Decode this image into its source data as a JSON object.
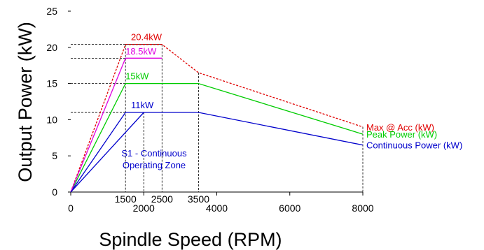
{
  "chart_data": {
    "type": "line",
    "xlabel": "Spindle Speed (RPM)",
    "ylabel": "Output Power (kW)",
    "xlim": [
      0,
      8000
    ],
    "ylim": [
      0,
      25
    ],
    "xticks": [
      "0",
      "2000",
      "4000",
      "6000",
      "8000"
    ],
    "xticks_secondary": [
      "1500",
      "2500",
      "3500"
    ],
    "yticks": [
      "0",
      "5",
      "10",
      "15",
      "20",
      "25"
    ],
    "series": [
      {
        "name": "Max @ Acc (kW)",
        "color": "#e00000",
        "style": "dashed",
        "x": [
          0,
          1500,
          2500,
          3500,
          8000
        ],
        "y": [
          0,
          20.4,
          20.4,
          16.5,
          9
        ]
      },
      {
        "name": "Peak Power (kW)",
        "color": "#00cc00",
        "style": "solid",
        "x": [
          0,
          1500,
          3500,
          8000
        ],
        "y": [
          0,
          15,
          15,
          8
        ]
      },
      {
        "name": "Continuous Power (kW)",
        "color": "#0000cc",
        "style": "solid",
        "x": [
          0,
          1500,
          3500,
          8000
        ],
        "y": [
          0,
          11,
          11,
          6.5
        ]
      },
      {
        "name": "",
        "color": "#e000e0",
        "style": "solid",
        "x": [
          0,
          1500,
          2500
        ],
        "y": [
          0,
          18.5,
          18.5
        ]
      },
      {
        "name": "",
        "color": "#0000cc",
        "style": "solid",
        "x": [
          0,
          2000
        ],
        "y": [
          0,
          11
        ]
      }
    ],
    "annotations": [
      {
        "text": "20.4kW",
        "x": 1650,
        "y": 21.0,
        "color": "#e00000"
      },
      {
        "text": "18.5kW",
        "x": 1500,
        "y": 19.0,
        "color": "#e000e0"
      },
      {
        "text": "15kW",
        "x": 1500,
        "y": 15.6,
        "color": "#00cc00"
      },
      {
        "text": "11kW",
        "x": 1650,
        "y": 11.6,
        "color": "#0000cc"
      }
    ],
    "zone_label": [
      "S1 - Continuous",
      "Operating Zone"
    ],
    "guides": {
      "horizontal": [
        20.4,
        18.5,
        15,
        11
      ],
      "vertical": [
        1500,
        2000,
        2500,
        3500,
        8000
      ]
    }
  }
}
